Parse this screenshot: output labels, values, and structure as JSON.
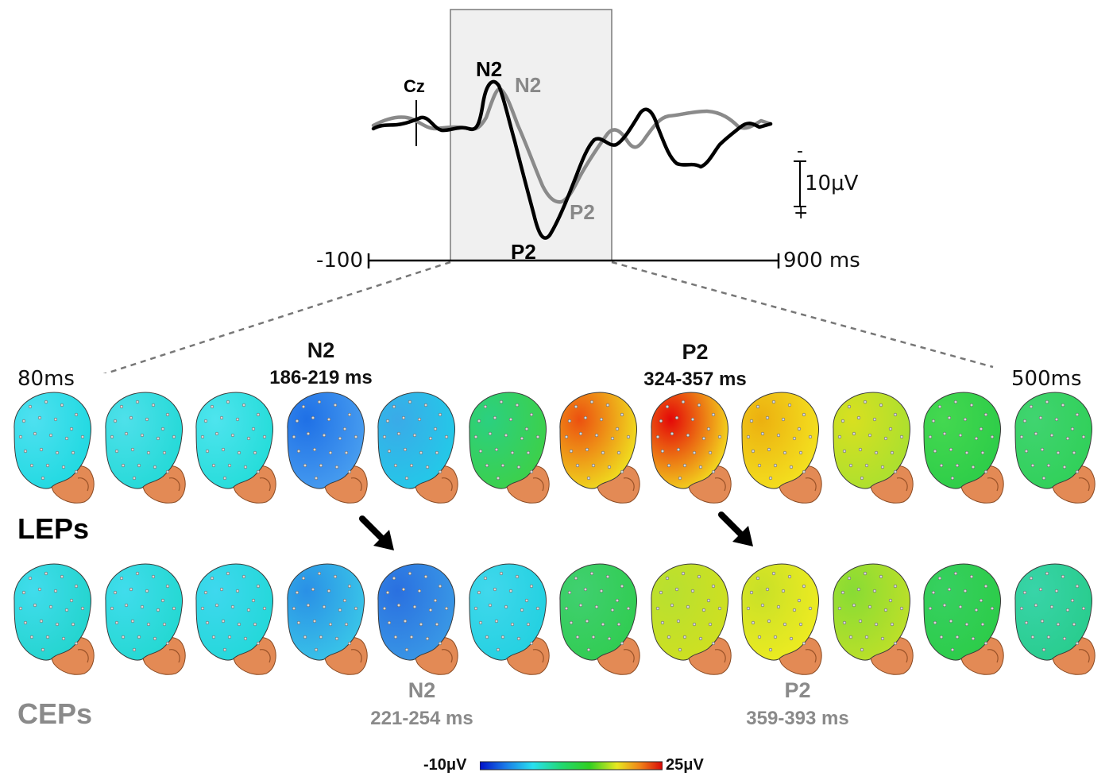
{
  "waveform": {
    "channel_label": "Cz",
    "x_start_label": "-100",
    "x_end_label": "900 ms",
    "scale_label": "10μV",
    "scale_minus": "-",
    "scale_plus": "+",
    "peaks_lep": {
      "n2": "N2",
      "p2": "P2"
    },
    "peaks_cep": {
      "n2": "N2",
      "p2": "P2"
    }
  },
  "topomaps": {
    "start_label": "80ms",
    "end_label": "500ms",
    "lep_row_label": "LEPs",
    "cep_row_label": "CEPs",
    "lep_n2": {
      "name": "N2",
      "range": "186-219 ms"
    },
    "lep_p2": {
      "name": "P2",
      "range": "324-357 ms"
    },
    "cep_n2": {
      "name": "N2",
      "range": "221-254 ms"
    },
    "cep_p2": {
      "name": "P2",
      "range": "359-393 ms"
    },
    "lep_colors": [
      [
        "#1ed9e0",
        "#4ee0f0"
      ],
      [
        "#22d9d6",
        "#4ee0ea"
      ],
      [
        "#22dcd8",
        "#4ee4ee"
      ],
      [
        "#4aa0f0",
        "#1f70e6"
      ],
      [
        "#22cbe8",
        "#3aaae8"
      ],
      [
        "#3ed046",
        "#2bd080"
      ],
      [
        "#f0e820",
        "#ec5010"
      ],
      [
        "#f4e820",
        "#e40808"
      ],
      [
        "#f4e420",
        "#ecb010"
      ],
      [
        "#a8e030",
        "#d8e020"
      ],
      [
        "#2ccc48",
        "#44d850"
      ],
      [
        "#30d058",
        "#40d470"
      ]
    ],
    "cep_colors": [
      [
        "#22d4cc",
        "#40dcec"
      ],
      [
        "#22d8d0",
        "#40dcec"
      ],
      [
        "#22d8d8",
        "#3ed8ee"
      ],
      [
        "#3ac8e8",
        "#2a90e6"
      ],
      [
        "#3a9ae6",
        "#2a70e0"
      ],
      [
        "#22d0e0",
        "#40d8ec"
      ],
      [
        "#30cc50",
        "#40d070"
      ],
      [
        "#d0e020",
        "#b8e030"
      ],
      [
        "#f0ec20",
        "#c8e028"
      ],
      [
        "#c0e028",
        "#88dc34"
      ],
      [
        "#2ccc48",
        "#36d060"
      ],
      [
        "#28cc8c",
        "#38d4a8"
      ]
    ],
    "colorbar": {
      "min_label": "-10μV",
      "max_label": "25μV"
    }
  }
}
